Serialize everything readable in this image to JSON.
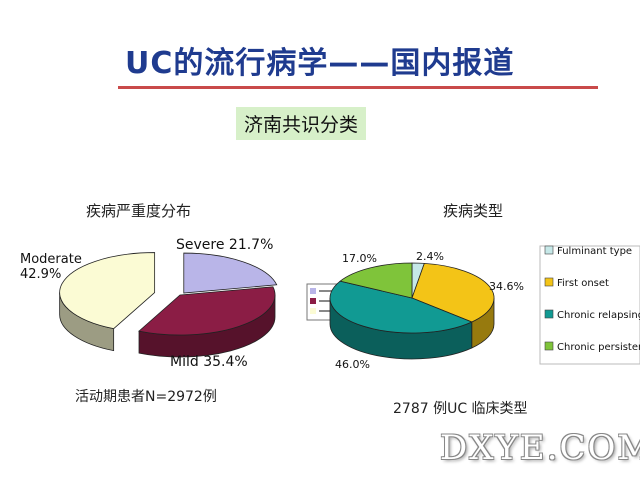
{
  "title": "UC的流行病学——国内报道",
  "subtitle": "济南共识分类",
  "watermark": "DXYE.COM",
  "chart_data": [
    {
      "type": "pie",
      "title": "疾病严重度分布",
      "footnote": "活动期患者N=2972例",
      "series": [
        {
          "name": "Severe",
          "label": "Severe 21.7%",
          "value": 21.7,
          "color": "#b9b5e8"
        },
        {
          "name": "Mild",
          "label": "Mild  35.4%",
          "value": 35.4,
          "color": "#8b1d45"
        },
        {
          "name": "Moderate",
          "label": "Moderate\n42.9%",
          "value": 42.9,
          "color": "#fbfbd4"
        }
      ]
    },
    {
      "type": "pie",
      "title": "疾病类型",
      "footnote": "2787 例UC 临床类型",
      "legend_position": "right",
      "series": [
        {
          "name": "Fulminant type",
          "label": "2.4%",
          "value": 2.4,
          "color": "#c6e8e8"
        },
        {
          "name": "First onset",
          "label": "34.6%",
          "value": 34.6,
          "color": "#f3c417"
        },
        {
          "name": "Chronic relapsing",
          "label": "46.0%",
          "value": 46.0,
          "color": "#119a93"
        },
        {
          "name": "Chronic persistent",
          "label": "17.0%",
          "value": 17.0,
          "color": "#7fc43a"
        }
      ]
    }
  ]
}
